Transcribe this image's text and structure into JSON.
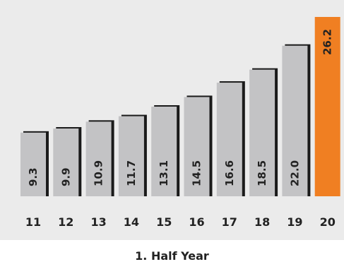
{
  "chart_data": {
    "type": "bar",
    "title": "",
    "xlabel": "1. Half Year",
    "ylabel": "",
    "categories": [
      "11",
      "12",
      "13",
      "14",
      "15",
      "16",
      "17",
      "18",
      "19",
      "20"
    ],
    "values": [
      9.3,
      9.9,
      10.9,
      11.7,
      13.1,
      14.5,
      16.6,
      18.5,
      22.0,
      26.2
    ],
    "value_labels": [
      "9.3",
      "9.9",
      "10.9",
      "11.7",
      "13.1",
      "14.5",
      "16.6",
      "18.5",
      "22.0",
      "26.2"
    ],
    "ylim": [
      0,
      26.2
    ],
    "grid": false,
    "colors": {
      "background_panel": "#ebebeb",
      "bar": "#c3c3c5",
      "bar_highlight": "#f07f22",
      "bar_shadow": "#1a1a1a",
      "text": "#222222"
    },
    "highlight_category": "20"
  }
}
